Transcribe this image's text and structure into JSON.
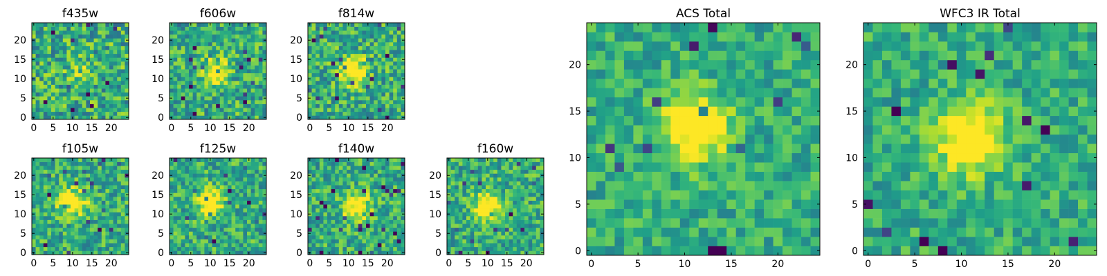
{
  "figure": {
    "colormap": "viridis",
    "grid": false
  },
  "chart_data": [
    {
      "type": "heatmap",
      "title": "f435w",
      "xlim": [
        0,
        24
      ],
      "ylim": [
        0,
        24
      ],
      "xticks": [
        "0",
        "5",
        "10",
        "15",
        "20"
      ],
      "yticks": [
        "0",
        "5",
        "10",
        "15",
        "20"
      ],
      "source_center": [
        12,
        12
      ],
      "source_strength": 0.15,
      "noise": 0.55,
      "seed": 11
    },
    {
      "type": "heatmap",
      "title": "f606w",
      "xlim": [
        0,
        24
      ],
      "ylim": [
        0,
        24
      ],
      "xticks": [
        "0",
        "5",
        "10",
        "15",
        "20"
      ],
      "yticks": [
        "0",
        "5",
        "10",
        "15",
        "20"
      ],
      "source_center": [
        11,
        12
      ],
      "source_strength": 0.45,
      "noise": 0.5,
      "seed": 23
    },
    {
      "type": "heatmap",
      "title": "f814w",
      "xlim": [
        0,
        24
      ],
      "ylim": [
        0,
        24
      ],
      "xticks": [
        "0",
        "5",
        "10",
        "15",
        "20"
      ],
      "yticks": [
        "0",
        "5",
        "10",
        "15",
        "20"
      ],
      "source_center": [
        11,
        12
      ],
      "source_strength": 0.6,
      "noise": 0.5,
      "seed": 37
    },
    {
      "type": "heatmap",
      "title": "f105w",
      "xlim": [
        0,
        24
      ],
      "ylim": [
        0,
        24
      ],
      "xticks": [
        "0",
        "5",
        "10",
        "15",
        "20"
      ],
      "yticks": [
        "0",
        "5",
        "10",
        "15",
        "20"
      ],
      "source_center": [
        10,
        13
      ],
      "source_strength": 0.55,
      "noise": 0.45,
      "seed": 41
    },
    {
      "type": "heatmap",
      "title": "f125w",
      "xlim": [
        0,
        24
      ],
      "ylim": [
        0,
        24
      ],
      "xticks": [
        "0",
        "5",
        "10",
        "15",
        "20"
      ],
      "yticks": [
        "0",
        "5",
        "10",
        "15",
        "20"
      ],
      "source_center": [
        10,
        13
      ],
      "source_strength": 0.5,
      "noise": 0.45,
      "seed": 53
    },
    {
      "type": "heatmap",
      "title": "f140w",
      "xlim": [
        0,
        24
      ],
      "ylim": [
        0,
        24
      ],
      "xticks": [
        "0",
        "5",
        "10",
        "15",
        "20"
      ],
      "yticks": [
        "0",
        "5",
        "10",
        "15",
        "20"
      ],
      "source_center": [
        12,
        12
      ],
      "source_strength": 0.55,
      "noise": 0.45,
      "seed": 67
    },
    {
      "type": "heatmap",
      "title": "f160w",
      "xlim": [
        0,
        24
      ],
      "ylim": [
        0,
        24
      ],
      "xticks": [
        "0",
        "5",
        "10",
        "15",
        "20"
      ],
      "yticks": [
        "0",
        "5",
        "10",
        "15",
        "20"
      ],
      "source_center": [
        10,
        12
      ],
      "source_strength": 0.6,
      "noise": 0.45,
      "seed": 79
    },
    {
      "type": "heatmap",
      "title": "ACS Total",
      "xlim": [
        0,
        24
      ],
      "ylim": [
        0,
        24
      ],
      "xticks": [
        "0",
        "5",
        "10",
        "15",
        "20"
      ],
      "yticks": [
        "0",
        "5",
        "10",
        "15",
        "20"
      ],
      "source_center": [
        11,
        13
      ],
      "source_strength": 0.6,
      "noise": 0.35,
      "seed": 97
    },
    {
      "type": "heatmap",
      "title": "WFC3 IR Total",
      "xlim": [
        0,
        24
      ],
      "ylim": [
        0,
        24
      ],
      "xticks": [
        "0",
        "5",
        "10",
        "15",
        "20"
      ],
      "yticks": [
        "0",
        "5",
        "10",
        "15",
        "20"
      ],
      "source_center": [
        11,
        12
      ],
      "source_strength": 0.65,
      "noise": 0.35,
      "seed": 113
    }
  ]
}
